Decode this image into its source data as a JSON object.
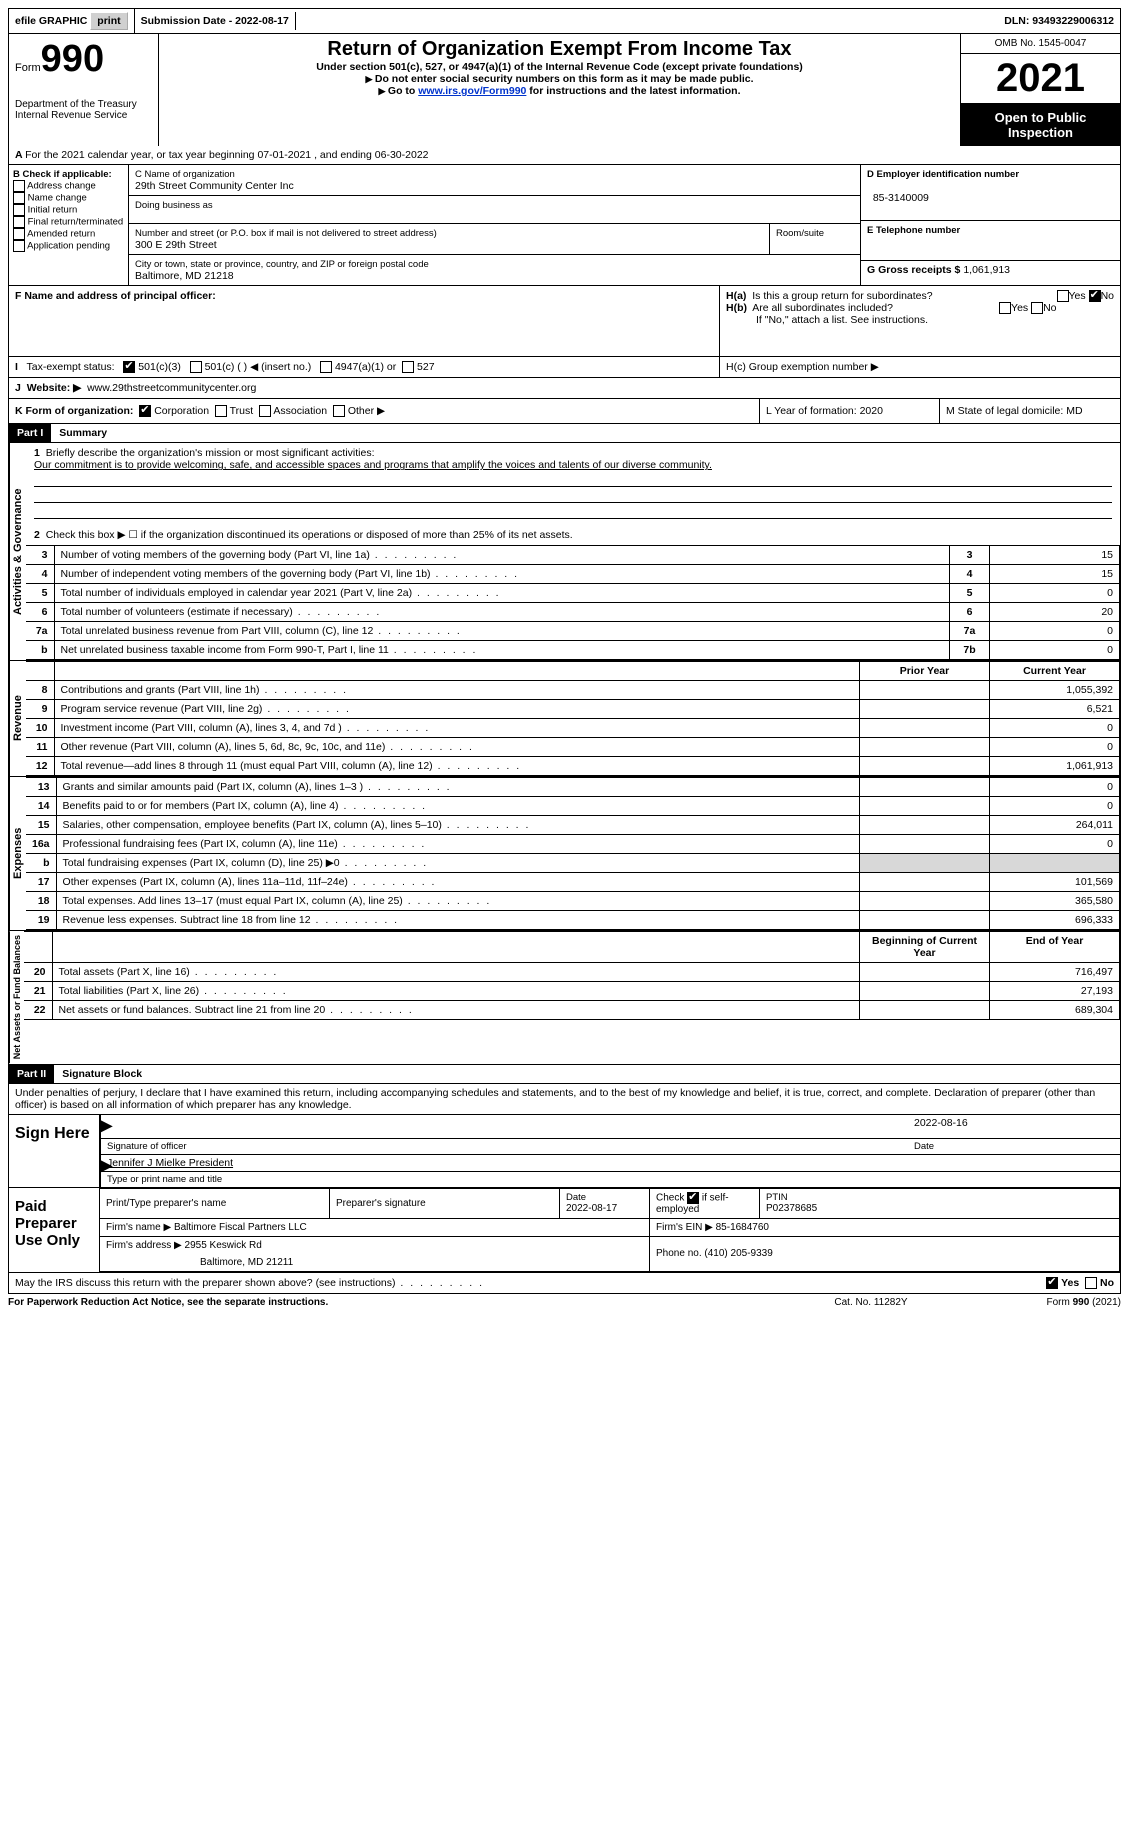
{
  "topbar": {
    "efile_label": "efile GRAPHIC",
    "print_btn": "print",
    "submission_label": "Submission Date - 2022-08-17",
    "dln": "DLN: 93493229006312"
  },
  "header": {
    "form_word": "Form",
    "form_num": "990",
    "dept": "Department of the Treasury",
    "irs": "Internal Revenue Service",
    "title": "Return of Organization Exempt From Income Tax",
    "sub1": "Under section 501(c), 527, or 4947(a)(1) of the Internal Revenue Code (except private foundations)",
    "sub2": "Do not enter social security numbers on this form as it may be made public.",
    "sub3_pre": "Go to ",
    "sub3_link": "www.irs.gov/Form990",
    "sub3_post": " for instructions and the latest information.",
    "omb": "OMB No. 1545-0047",
    "year": "2021",
    "open": "Open to Public Inspection"
  },
  "lineA": "For the 2021 calendar year, or tax year beginning 07-01-2021    , and ending 06-30-2022",
  "boxB": {
    "label": "B Check if applicable:",
    "items": [
      "Address change",
      "Name change",
      "Initial return",
      "Final return/terminated",
      "Amended return",
      "Application pending"
    ]
  },
  "boxC": {
    "name_label": "C Name of organization",
    "name": "29th Street Community Center Inc",
    "dba_label": "Doing business as",
    "street_label": "Number and street (or P.O. box if mail is not delivered to street address)",
    "room_label": "Room/suite",
    "street": "300 E 29th Street",
    "city_label": "City or town, state or province, country, and ZIP or foreign postal code",
    "city": "Baltimore, MD  21218"
  },
  "boxD": {
    "label": "D Employer identification number",
    "value": "85-3140009"
  },
  "boxE": {
    "label": "E Telephone number",
    "value": ""
  },
  "boxG": {
    "label": "G Gross receipts $",
    "value": "1,061,913"
  },
  "boxF": {
    "label": "F  Name and address of principal officer:"
  },
  "boxH": {
    "a_label": "H(a)  Is this a group return for subordinates?",
    "b_label": "H(b)  Are all subordinates included?",
    "b_note": "If \"No,\" attach a list. See instructions.",
    "c_label": "H(c)  Group exemption number ▶"
  },
  "taxexempt": {
    "label": "Tax-exempt status:",
    "o1": "501(c)(3)",
    "o2": "501(c) (  ) ◀ (insert no.)",
    "o3": "4947(a)(1) or",
    "o4": "527"
  },
  "website": {
    "label": "Website: ▶",
    "value": "www.29thstreetcommunitycenter.org"
  },
  "boxK": {
    "label": "K Form of organization:",
    "corp": "Corporation",
    "trust": "Trust",
    "assoc": "Association",
    "other": "Other ▶"
  },
  "boxL": {
    "label": "L Year of formation: 2020"
  },
  "boxM": {
    "label": "M State of legal domicile: MD"
  },
  "part1": {
    "label": "Part I",
    "title": "Summary"
  },
  "mission": {
    "prompt": "Briefly describe the organization's mission or most significant activities:",
    "text": "Our commitment is to provide welcoming, safe, and accessible spaces and programs that amplify the voices and talents of our diverse community."
  },
  "line2": "Check this box ▶ ☐ if the organization discontinued its operations or disposed of more than 25% of its net assets.",
  "gov_lines": [
    {
      "n": "3",
      "t": "Number of voting members of the governing body (Part VI, line 1a)",
      "box": "3",
      "v": "15"
    },
    {
      "n": "4",
      "t": "Number of independent voting members of the governing body (Part VI, line 1b)",
      "box": "4",
      "v": "15"
    },
    {
      "n": "5",
      "t": "Total number of individuals employed in calendar year 2021 (Part V, line 2a)",
      "box": "5",
      "v": "0"
    },
    {
      "n": "6",
      "t": "Total number of volunteers (estimate if necessary)",
      "box": "6",
      "v": "20"
    },
    {
      "n": "7a",
      "t": "Total unrelated business revenue from Part VIII, column (C), line 12",
      "box": "7a",
      "v": "0"
    },
    {
      "n": "b",
      "t": "Net unrelated business taxable income from Form 990-T, Part I, line 11",
      "box": "7b",
      "v": "0"
    }
  ],
  "col_headers": {
    "prior": "Prior Year",
    "current": "Current Year",
    "begin": "Beginning of Current Year",
    "end": "End of Year"
  },
  "rev_lines": [
    {
      "n": "8",
      "t": "Contributions and grants (Part VIII, line 1h)",
      "p": "",
      "c": "1,055,392"
    },
    {
      "n": "9",
      "t": "Program service revenue (Part VIII, line 2g)",
      "p": "",
      "c": "6,521"
    },
    {
      "n": "10",
      "t": "Investment income (Part VIII, column (A), lines 3, 4, and 7d )",
      "p": "",
      "c": "0"
    },
    {
      "n": "11",
      "t": "Other revenue (Part VIII, column (A), lines 5, 6d, 8c, 9c, 10c, and 11e)",
      "p": "",
      "c": "0"
    },
    {
      "n": "12",
      "t": "Total revenue—add lines 8 through 11 (must equal Part VIII, column (A), line 12)",
      "p": "",
      "c": "1,061,913"
    }
  ],
  "exp_lines": [
    {
      "n": "13",
      "t": "Grants and similar amounts paid (Part IX, column (A), lines 1–3 )",
      "p": "",
      "c": "0"
    },
    {
      "n": "14",
      "t": "Benefits paid to or for members (Part IX, column (A), line 4)",
      "p": "",
      "c": "0"
    },
    {
      "n": "15",
      "t": "Salaries, other compensation, employee benefits (Part IX, column (A), lines 5–10)",
      "p": "",
      "c": "264,011"
    },
    {
      "n": "16a",
      "t": "Professional fundraising fees (Part IX, column (A), line 11e)",
      "p": "",
      "c": "0"
    },
    {
      "n": "b",
      "t": "Total fundraising expenses (Part IX, column (D), line 25) ▶0",
      "p": "shade",
      "c": "shade"
    },
    {
      "n": "17",
      "t": "Other expenses (Part IX, column (A), lines 11a–11d, 11f–24e)",
      "p": "",
      "c": "101,569"
    },
    {
      "n": "18",
      "t": "Total expenses. Add lines 13–17 (must equal Part IX, column (A), line 25)",
      "p": "",
      "c": "365,580"
    },
    {
      "n": "19",
      "t": "Revenue less expenses. Subtract line 18 from line 12",
      "p": "",
      "c": "696,333"
    }
  ],
  "net_lines": [
    {
      "n": "20",
      "t": "Total assets (Part X, line 16)",
      "p": "",
      "c": "716,497"
    },
    {
      "n": "21",
      "t": "Total liabilities (Part X, line 26)",
      "p": "",
      "c": "27,193"
    },
    {
      "n": "22",
      "t": "Net assets or fund balances. Subtract line 21 from line 20",
      "p": "",
      "c": "689,304"
    }
  ],
  "vlabels": {
    "gov": "Activities & Governance",
    "rev": "Revenue",
    "exp": "Expenses",
    "net": "Net Assets or Fund Balances"
  },
  "part2": {
    "label": "Part II",
    "title": "Signature Block"
  },
  "perjury": "Under penalties of perjury, I declare that I have examined this return, including accompanying schedules and statements, and to the best of my knowledge and belief, it is true, correct, and complete. Declaration of preparer (other than officer) is based on all information of which preparer has any knowledge.",
  "sign": {
    "here": "Sign Here",
    "sig_label": "Signature of officer",
    "date": "2022-08-16",
    "date_label": "Date",
    "name": "Jennifer J Mielke  President",
    "name_label": "Type or print name and title"
  },
  "paid": {
    "label": "Paid Preparer Use Only",
    "h1": "Print/Type preparer's name",
    "h2": "Preparer's signature",
    "h3_label": "Date",
    "h3": "2022-08-17",
    "h4": "Check ☑ if self-employed",
    "h5_label": "PTIN",
    "h5": "P02378685",
    "firm_name_label": "Firm's name    ▶",
    "firm_name": "Baltimore Fiscal Partners LLC",
    "firm_ein_label": "Firm's EIN ▶",
    "firm_ein": "85-1684760",
    "firm_addr_label": "Firm's address ▶",
    "firm_addr": "2955 Keswick Rd",
    "firm_city": "Baltimore, MD  21211",
    "phone_label": "Phone no.",
    "phone": "(410) 205-9339"
  },
  "footer": {
    "discuss": "May the IRS discuss this return with the preparer shown above? (see instructions)",
    "yes": "Yes",
    "no": "No",
    "pra": "For Paperwork Reduction Act Notice, see the separate instructions.",
    "cat": "Cat. No. 11282Y",
    "form": "Form 990 (2021)"
  }
}
